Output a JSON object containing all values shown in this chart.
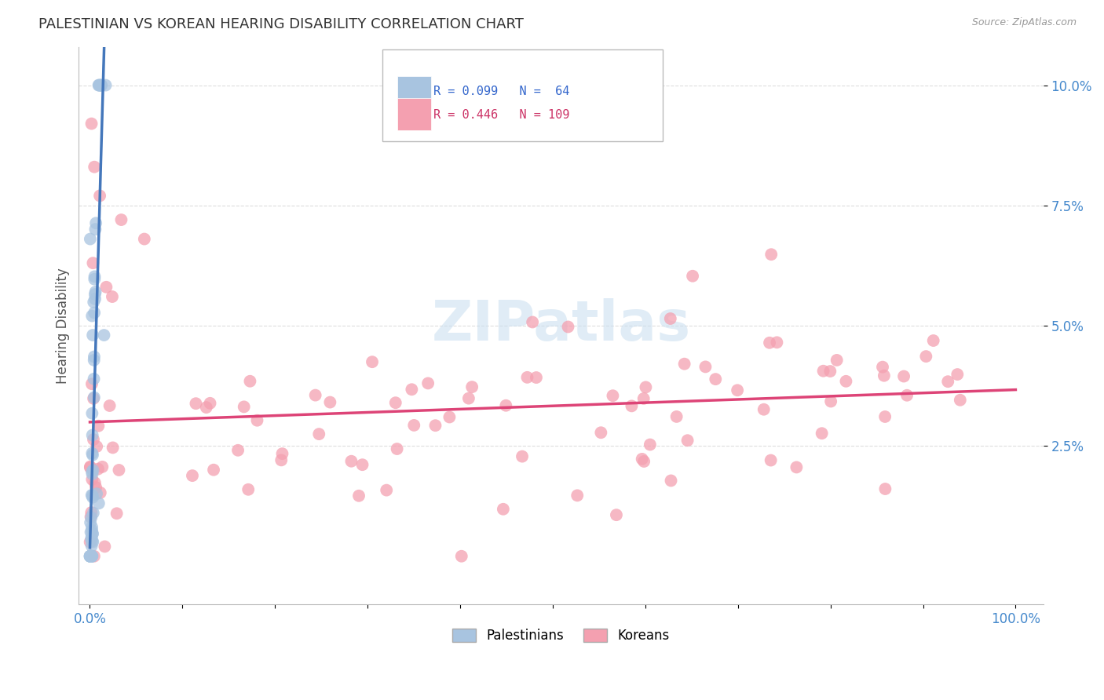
{
  "title": "PALESTINIAN VS KOREAN HEARING DISABILITY CORRELATION CHART",
  "source": "Source: ZipAtlas.com",
  "ylabel": "Hearing Disability",
  "pal_color": "#a8c4e0",
  "kor_color": "#f4a0b0",
  "pal_edge_color": "#7aaad0",
  "kor_edge_color": "#e888a0",
  "pal_line_color": "#4477bb",
  "pal_dash_color": "#88aacc",
  "kor_line_color": "#dd4477",
  "pal_R": 0.099,
  "pal_N": 64,
  "kor_R": 0.446,
  "kor_N": 109,
  "legend_text_color": "#3366cc",
  "legend_kor_text_color": "#cc3366",
  "watermark_color": "#cce0f0",
  "grid_color": "#dddddd",
  "tick_color": "#4488cc",
  "title_color": "#333333",
  "source_color": "#999999"
}
